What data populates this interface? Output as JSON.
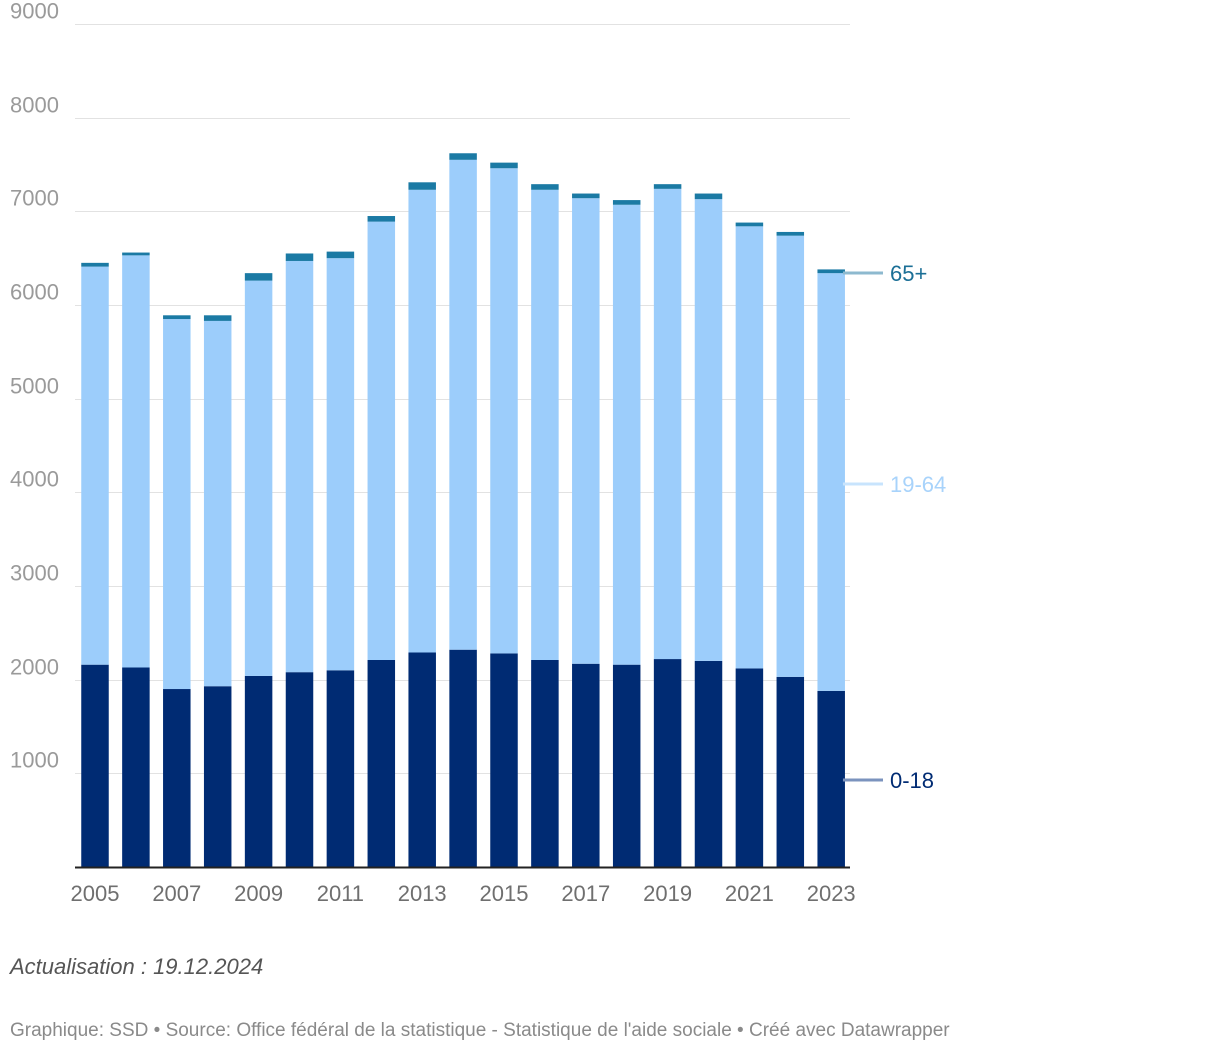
{
  "chart_data": {
    "type": "bar",
    "stacked": true,
    "categories": [
      "2005",
      "2006",
      "2007",
      "2008",
      "2009",
      "2010",
      "2011",
      "2012",
      "2013",
      "2014",
      "2015",
      "2016",
      "2017",
      "2018",
      "2019",
      "2020",
      "2021",
      "2022",
      "2023"
    ],
    "x_tick_labels": [
      "2005",
      "2007",
      "2009",
      "2011",
      "2013",
      "2015",
      "2017",
      "2019",
      "2021",
      "2023"
    ],
    "y_ticks": [
      "1000",
      "2000",
      "3000",
      "4000",
      "5000",
      "6000",
      "7000",
      "8000",
      "9000"
    ],
    "ylim": [
      0,
      9000
    ],
    "grid": true,
    "legend": "direct labels right",
    "series": [
      {
        "name": "0-18",
        "color": "#002b73",
        "label_color": "#002b73",
        "line_color": "#7b93be",
        "values": [
          2160,
          2130,
          1900,
          1930,
          2040,
          2080,
          2100,
          2210,
          2290,
          2320,
          2280,
          2210,
          2170,
          2160,
          2220,
          2200,
          2120,
          2030,
          1880
        ]
      },
      {
        "name": "19-64",
        "color": "#9ccdfb",
        "label_color": "#a8d3fb",
        "line_color": "#c8e4fd",
        "values": [
          4250,
          4400,
          3950,
          3900,
          4220,
          4390,
          4400,
          4680,
          4940,
          5230,
          5180,
          5020,
          4970,
          4910,
          5020,
          4930,
          4720,
          4710,
          4460
        ]
      },
      {
        "name": "65+",
        "color": "#1b7aa4",
        "label_color": "#1b6f96",
        "line_color": "#8db9cf",
        "values": [
          40,
          30,
          40,
          60,
          80,
          80,
          70,
          60,
          80,
          70,
          60,
          60,
          50,
          50,
          50,
          60,
          40,
          40,
          40
        ]
      }
    ]
  },
  "note": "Actualisation : 19.12.2024",
  "credits": "Graphique: SSD • Source: Office fédéral de la statistique - Statistique de l'aide sociale • Créé avec Datawrapper"
}
